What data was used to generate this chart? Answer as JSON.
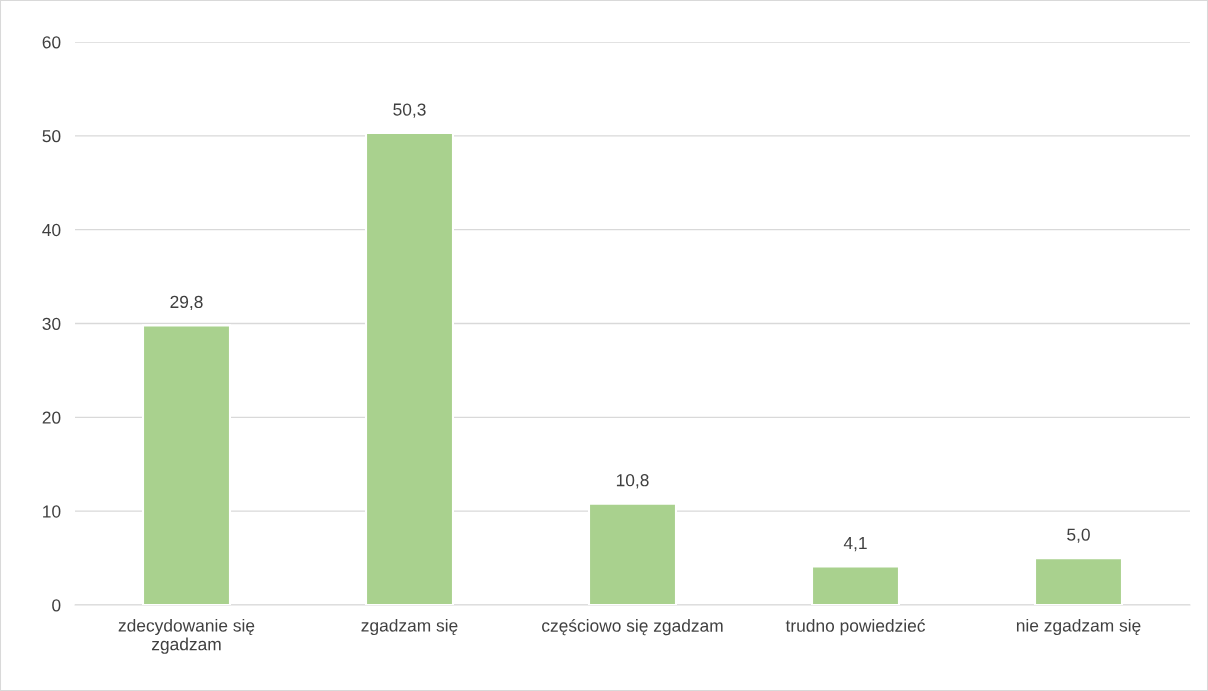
{
  "chart_data": {
    "type": "bar",
    "categories": [
      "zdecydowanie się\nzgadzam",
      "zgadzam się",
      "częściowo się zgadzam",
      "trudno powiedzieć",
      "nie zgadzam się"
    ],
    "values": [
      29.8,
      50.3,
      10.8,
      4.1,
      5.0
    ],
    "value_labels": [
      "29,8",
      "50,3",
      "10,8",
      "4,1",
      "5,0"
    ],
    "color": "#a9d18e",
    "ylim": [
      0,
      60
    ],
    "yticks": [
      0,
      10,
      20,
      30,
      40,
      50,
      60
    ],
    "grid": "y",
    "legend": false
  }
}
